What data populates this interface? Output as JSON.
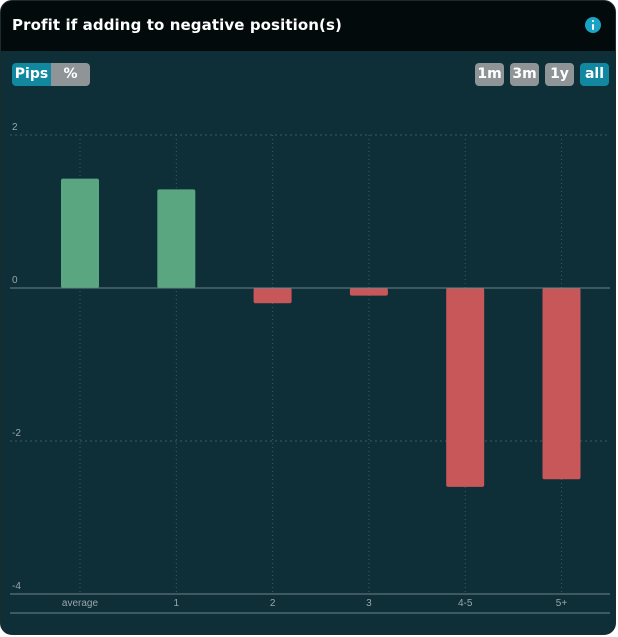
{
  "header": {
    "title": "Profit if adding to negative position(s)",
    "info_icon": "info-icon"
  },
  "controls": {
    "unit_toggle": [
      {
        "label": "Pips",
        "active": true
      },
      {
        "label": "%",
        "active": false
      }
    ],
    "time_ranges": [
      {
        "label": "1m",
        "active": false
      },
      {
        "label": "3m",
        "active": false
      },
      {
        "label": "1y",
        "active": false
      },
      {
        "label": "all",
        "active": true
      }
    ]
  },
  "colors": {
    "background": "#0e2e38",
    "header": "#020a0c",
    "positive_bar": "#5aa680",
    "negative_bar": "#c8575a",
    "accent": "#11889f",
    "inactive_button": "#8f9597"
  },
  "chart_data": {
    "type": "bar",
    "title": "",
    "xlabel": "",
    "ylabel": "",
    "categories": [
      "average",
      "1",
      "2",
      "3",
      "4-5",
      "5+"
    ],
    "values": [
      1.43,
      1.29,
      -0.2,
      -0.1,
      -2.6,
      -2.5
    ],
    "ylim": [
      -4,
      2
    ],
    "yticks": [
      2,
      0,
      -2,
      -4
    ],
    "grid": true,
    "legend": "none"
  }
}
